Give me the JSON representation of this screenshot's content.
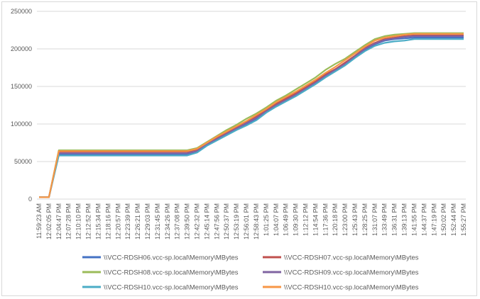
{
  "chart_data": {
    "type": "line",
    "title": "",
    "xlabel": "",
    "ylabel": "",
    "ylim": [
      0,
      250000
    ],
    "yticks": [
      0,
      50000,
      100000,
      150000,
      200000,
      250000
    ],
    "ytick_labels": [
      "0",
      "50000",
      "100000",
      "150000",
      "200000",
      "250000"
    ],
    "grid": "horizontal",
    "legend_position": "bottom",
    "x": [
      "11:59:23 AM",
      "12:02:05 PM",
      "12:04:47 PM",
      "12:07:28 PM",
      "12:10:10 PM",
      "12:12:52 PM",
      "12:15:34 PM",
      "12:18:16 PM",
      "12:20:57 PM",
      "12:23:39 PM",
      "12:26:21 PM",
      "12:29:03 PM",
      "12:31:45 PM",
      "12:34:26 PM",
      "12:37:08 PM",
      "12:39:50 PM",
      "12:42:32 PM",
      "12:45:14 PM",
      "12:47:56 PM",
      "12:50:37 PM",
      "12:53:19 PM",
      "12:56:01 PM",
      "12:58:43 PM",
      "1:01:25 PM",
      "1:04:07 PM",
      "1:06:49 PM",
      "1:09:30 PM",
      "1:12:12 PM",
      "1:14:54 PM",
      "1:17:36 PM",
      "1:20:18 PM",
      "1:23:00 PM",
      "1:25:43 PM",
      "1:28:25 PM",
      "1:31:07 PM",
      "1:33:49 PM",
      "1:36:31 PM",
      "1:39:13 PM",
      "1:41:55 PM",
      "1:44:37 PM",
      "1:47:19 PM",
      "1:50:02 PM",
      "1:52:44 PM",
      "1:55:27 PM"
    ],
    "series": [
      {
        "name": "\\\\VCC-RDSH06.vcc-sp.local\\Memory\\MBytes",
        "color": "#4472c4",
        "values": [
          2500,
          2500,
          60000,
          60000,
          60000,
          60000,
          60000,
          60000,
          60000,
          60000,
          60000,
          60000,
          60000,
          60000,
          60000,
          60000,
          63000,
          72000,
          79000,
          86000,
          93000,
          99000,
          106000,
          116000,
          124000,
          131000,
          138000,
          146000,
          154000,
          163000,
          171000,
          179000,
          189000,
          199000,
          206000,
          211000,
          213000,
          214000,
          215000,
          215000,
          215000,
          215000,
          215000,
          215000
        ]
      },
      {
        "name": "\\\\VCC-RDSH07.vcc-sp.local\\Memory\\MBytes",
        "color": "#c0504d",
        "values": [
          2500,
          2500,
          63000,
          63000,
          63000,
          63000,
          63000,
          63000,
          63000,
          63000,
          63000,
          63000,
          63000,
          63000,
          63000,
          63000,
          66000,
          74000,
          81000,
          89000,
          96000,
          103000,
          110000,
          119000,
          127000,
          134000,
          141000,
          149000,
          157000,
          166000,
          173000,
          182000,
          191000,
          201000,
          208000,
          213000,
          215000,
          217000,
          218000,
          218000,
          218000,
          218000,
          218000,
          218000
        ]
      },
      {
        "name": "\\\\VCC-RDSH08.vcc-sp.local\\Memory\\MBytes",
        "color": "#9bbb59",
        "values": [
          2500,
          2500,
          65000,
          65000,
          65000,
          65000,
          65000,
          65000,
          65000,
          65000,
          65000,
          65000,
          65000,
          65000,
          65000,
          65000,
          68000,
          76000,
          84000,
          92000,
          99000,
          107000,
          114000,
          122000,
          131000,
          138000,
          146000,
          154000,
          162000,
          172000,
          180000,
          187000,
          196000,
          205000,
          213000,
          217000,
          219000,
          220000,
          221000,
          221000,
          221000,
          221000,
          221000,
          221000
        ]
      },
      {
        "name": "\\\\VCC-RDSH09.vcc-sp.local\\Memory\\MBytes",
        "color": "#8064a2",
        "values": [
          2500,
          2500,
          61000,
          61000,
          61000,
          61000,
          61000,
          61000,
          61000,
          61000,
          61000,
          61000,
          61000,
          61000,
          61000,
          61000,
          64000,
          73000,
          80000,
          87000,
          94000,
          101000,
          108000,
          117000,
          125000,
          132000,
          139000,
          147000,
          155000,
          164000,
          172000,
          180000,
          190000,
          200000,
          207000,
          212000,
          214000,
          216000,
          217000,
          217000,
          217000,
          217000,
          217000,
          217000
        ]
      },
      {
        "name": "\\\\VCC-RDSH10.vcc-sp.local\\Memory\\MBytes",
        "color": "#4bacc6",
        "values": [
          2500,
          2500,
          58000,
          58000,
          58000,
          58000,
          58000,
          58000,
          58000,
          58000,
          58000,
          58000,
          58000,
          58000,
          58000,
          58000,
          62000,
          71000,
          78000,
          85000,
          92000,
          98000,
          105000,
          115000,
          123000,
          130000,
          137000,
          145000,
          153000,
          162000,
          170000,
          178000,
          188000,
          197000,
          204000,
          208000,
          210000,
          211000,
          213000,
          213000,
          213000,
          213000,
          213000,
          213000
        ]
      },
      {
        "name": "\\\\VCC-RDSH10.vcc-sp.local\\Memory\\MBytes",
        "color": "#f79646",
        "values": [
          2500,
          2500,
          64000,
          64000,
          64000,
          64000,
          64000,
          64000,
          64000,
          64000,
          64000,
          64000,
          64000,
          64000,
          64000,
          64000,
          67000,
          75000,
          83000,
          90000,
          97000,
          104000,
          112000,
          120000,
          129000,
          136000,
          143000,
          151000,
          159000,
          168000,
          176000,
          185000,
          194000,
          203000,
          211000,
          215000,
          217000,
          219000,
          220000,
          220000,
          220000,
          220000,
          220000,
          220000
        ]
      }
    ]
  }
}
